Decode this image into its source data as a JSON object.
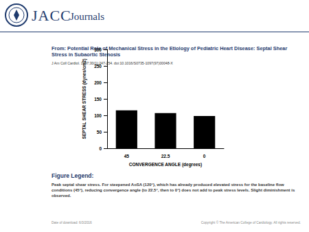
{
  "logo": [
    "JACC",
    "Journals"
  ],
  "header": {
    "title": "From: Potential Role of Mechanical Stress in the Etiology of Pediatric Heart Disease: Septal Shear Stress in Subaortic Stenosis",
    "citation": "J Am Coll Cardiol. 1997;30(1):247-254. doi:10.1016/S0735-1097(97)00048-X"
  },
  "chart_data": {
    "type": "bar",
    "x_label": "CONVERGENCE ANGLE (degrees)",
    "y_label": "SEPTAL SHEAR STRESS (dynes/cm2)",
    "categories": [
      "45",
      "22.5",
      "0"
    ],
    "values": [
      115,
      107,
      98
    ],
    "color": "#000000",
    "ylim": [
      0,
      300
    ],
    "yticks": [
      0,
      50,
      100,
      150,
      200,
      250,
      300
    ],
    "grid": false
  },
  "figure_legend": {
    "heading": "Figure Legend:",
    "text": "Peak septal shear stress. For steepened AoSA (120°), which has already produced elevated stress for the baseline flow conditions (45°), reducing convergence angle (to 22.5°, then to 0°) does not add to peak stress levels. Slight diminishment is observed."
  },
  "footer": {
    "date": "Date of download: 6/3/2016",
    "copyright": "Copyright © The American College of Cardiology. All rights reserved."
  }
}
